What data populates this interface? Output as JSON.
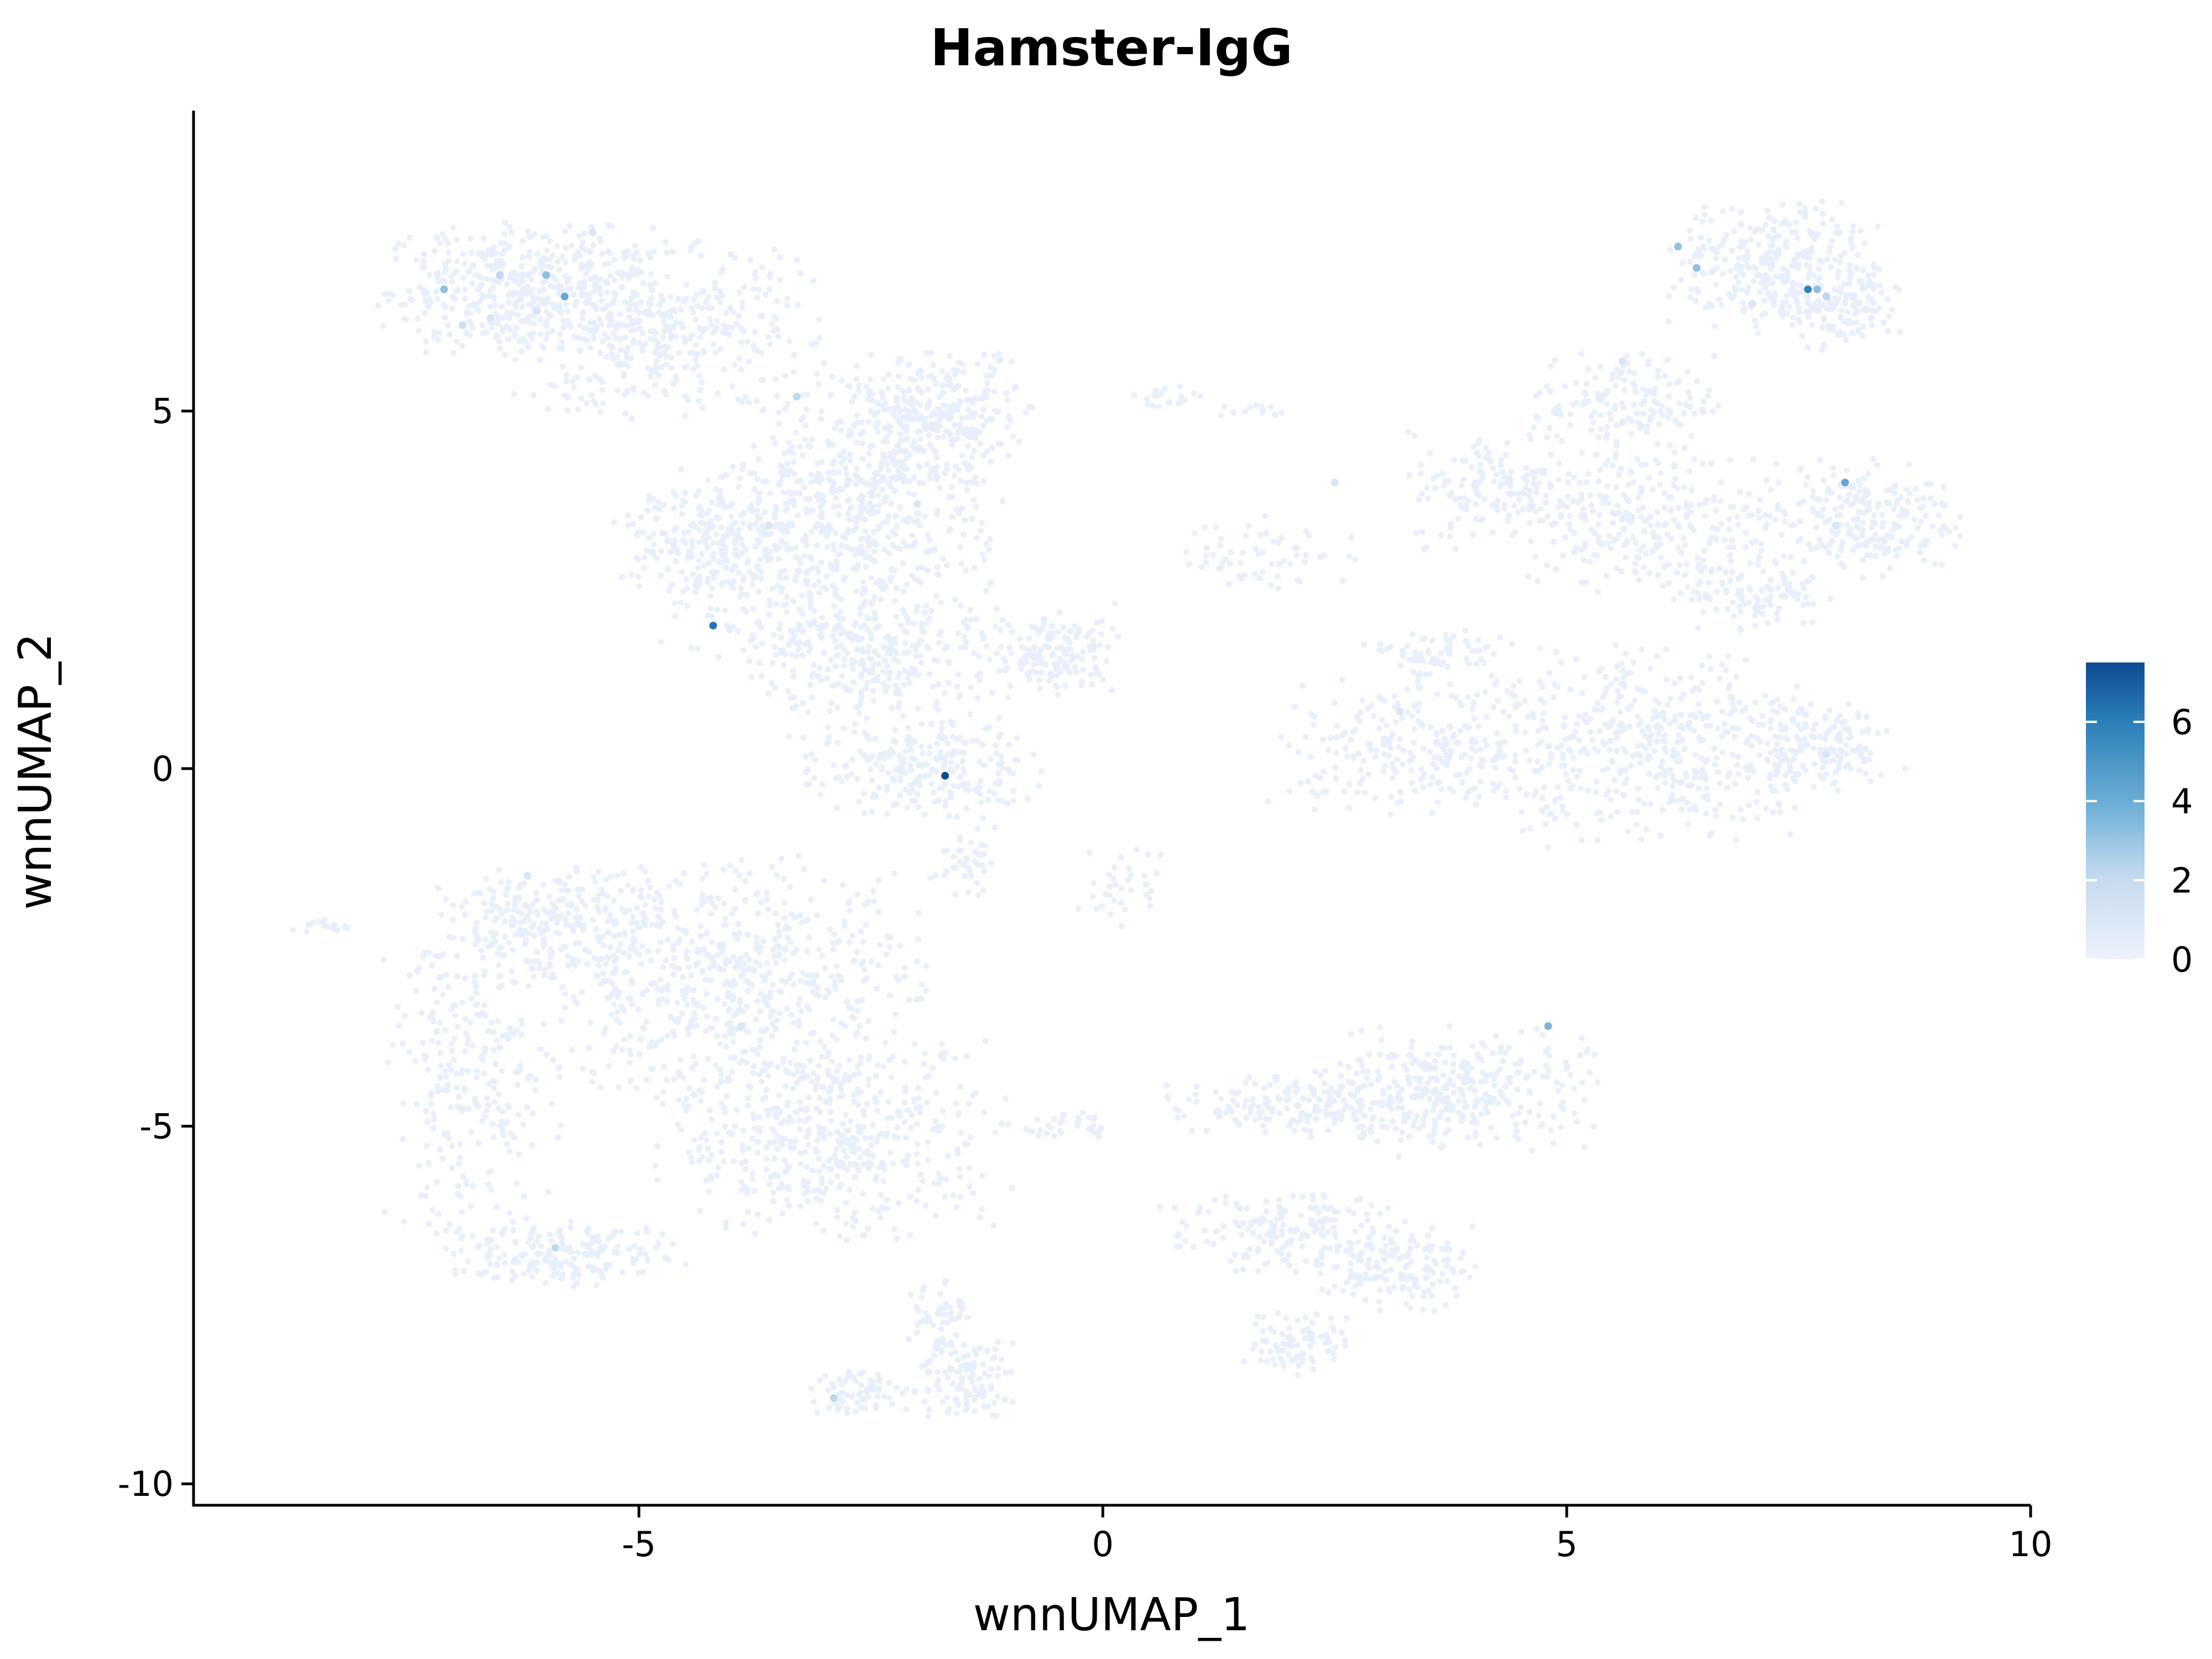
{
  "chart_data": {
    "type": "scatter",
    "title": "Hamster-IgG",
    "xlabel": "wnnUMAP_1",
    "ylabel": "wnnUMAP_2",
    "xlim": [
      -9.8,
      10
    ],
    "ylim": [
      -10.3,
      9.2
    ],
    "x_ticks": [
      -5,
      0,
      5,
      10
    ],
    "x_tick_labels": [
      "-5",
      "0",
      "5",
      "10"
    ],
    "y_ticks": [
      -10,
      -5,
      0,
      5
    ],
    "y_tick_labels": [
      "-10",
      "-5",
      "0",
      "5"
    ],
    "background_point_value": 0,
    "clusters": [
      {
        "name": "c1",
        "cx": -6.3,
        "cy": 6.7,
        "rx": 1.3,
        "ry": 0.8,
        "n": 420
      },
      {
        "name": "c2",
        "cx": -4.8,
        "cy": 6.1,
        "rx": 1.5,
        "ry": 1.1,
        "n": 420
      },
      {
        "name": "c3",
        "cx": -2.4,
        "cy": 4.4,
        "rx": 1.1,
        "ry": 1.2,
        "n": 300
      },
      {
        "name": "c4",
        "cx": -1.7,
        "cy": 4.9,
        "rx": 0.8,
        "ry": 0.8,
        "n": 220
      },
      {
        "name": "c5",
        "cx": -3.0,
        "cy": 3.0,
        "rx": 1.5,
        "ry": 1.3,
        "n": 480
      },
      {
        "name": "c6",
        "cx": -4.4,
        "cy": 3.2,
        "rx": 0.8,
        "ry": 0.7,
        "n": 180
      },
      {
        "name": "c7",
        "cx": -2.4,
        "cy": 1.5,
        "rx": 1.2,
        "ry": 0.8,
        "n": 280
      },
      {
        "name": "c8",
        "cx": -0.5,
        "cy": 1.6,
        "rx": 0.6,
        "ry": 0.5,
        "n": 140
      },
      {
        "name": "c9",
        "cx": -2.0,
        "cy": 0.0,
        "rx": 1.2,
        "ry": 0.6,
        "n": 240
      },
      {
        "name": "c10",
        "cx": -1.5,
        "cy": -1.3,
        "rx": 0.3,
        "ry": 0.4,
        "n": 40
      },
      {
        "name": "c11",
        "cx": 0.7,
        "cy": 5.2,
        "rx": 0.3,
        "ry": 0.15,
        "n": 20
      },
      {
        "name": "c12",
        "cx": 1.6,
        "cy": 5.0,
        "rx": 0.3,
        "ry": 0.1,
        "n": 12
      },
      {
        "name": "c13",
        "cx": 1.8,
        "cy": 3.0,
        "rx": 0.9,
        "ry": 0.5,
        "n": 60
      },
      {
        "name": "c14",
        "cx": 0.2,
        "cy": -1.6,
        "rx": 0.4,
        "ry": 0.5,
        "n": 35
      },
      {
        "name": "c15",
        "cx": 7.3,
        "cy": 7.0,
        "rx": 1.0,
        "ry": 0.8,
        "n": 320
      },
      {
        "name": "c16",
        "cx": 8.0,
        "cy": 6.4,
        "rx": 0.5,
        "ry": 0.5,
        "n": 100
      },
      {
        "name": "c17",
        "cx": 5.6,
        "cy": 5.1,
        "rx": 0.9,
        "ry": 0.6,
        "n": 160
      },
      {
        "name": "c18",
        "cx": 4.3,
        "cy": 3.9,
        "rx": 0.9,
        "ry": 0.7,
        "n": 160
      },
      {
        "name": "c19",
        "cx": 5.8,
        "cy": 3.5,
        "rx": 1.1,
        "ry": 0.9,
        "n": 240
      },
      {
        "name": "c20",
        "cx": 8.1,
        "cy": 3.5,
        "rx": 1.0,
        "ry": 0.7,
        "n": 240
      },
      {
        "name": "c21",
        "cx": 7.0,
        "cy": 2.5,
        "rx": 0.7,
        "ry": 0.5,
        "n": 120
      },
      {
        "name": "c22",
        "cx": 6.0,
        "cy": 0.3,
        "rx": 1.6,
        "ry": 1.2,
        "n": 480
      },
      {
        "name": "c23",
        "cx": 3.4,
        "cy": 0.3,
        "rx": 1.4,
        "ry": 0.8,
        "n": 260
      },
      {
        "name": "c24",
        "cx": 3.6,
        "cy": 1.6,
        "rx": 0.7,
        "ry": 0.3,
        "n": 70
      },
      {
        "name": "c25",
        "cx": 7.8,
        "cy": 0.3,
        "rx": 0.6,
        "ry": 0.6,
        "n": 140
      },
      {
        "name": "c26",
        "cx": -6.0,
        "cy": -2.2,
        "rx": 1.0,
        "ry": 0.7,
        "n": 260
      },
      {
        "name": "c27",
        "cx": -4.0,
        "cy": -3.0,
        "rx": 1.8,
        "ry": 1.5,
        "n": 650
      },
      {
        "name": "c28",
        "cx": -2.9,
        "cy": -5.2,
        "rx": 1.6,
        "ry": 1.2,
        "n": 480
      },
      {
        "name": "c29",
        "cx": -6.8,
        "cy": -4.4,
        "rx": 0.8,
        "ry": 1.9,
        "n": 260
      },
      {
        "name": "c30",
        "cx": -5.8,
        "cy": -6.8,
        "rx": 1.1,
        "ry": 0.4,
        "n": 180
      },
      {
        "name": "c31",
        "cx": -8.4,
        "cy": -2.2,
        "rx": 0.4,
        "ry": 0.1,
        "n": 15
      },
      {
        "name": "c32",
        "cx": -2.6,
        "cy": -8.7,
        "rx": 0.5,
        "ry": 0.3,
        "n": 70
      },
      {
        "name": "c33",
        "cx": -1.5,
        "cy": -8.5,
        "rx": 0.5,
        "ry": 0.5,
        "n": 110
      },
      {
        "name": "c34",
        "cx": -1.8,
        "cy": -7.6,
        "rx": 0.3,
        "ry": 0.5,
        "n": 50
      },
      {
        "name": "c35",
        "cx": 3.8,
        "cy": -4.5,
        "rx": 1.3,
        "ry": 0.8,
        "n": 300
      },
      {
        "name": "c36",
        "cx": 2.2,
        "cy": -4.7,
        "rx": 1.5,
        "ry": 0.4,
        "n": 190
      },
      {
        "name": "c37",
        "cx": 2.0,
        "cy": -6.5,
        "rx": 1.2,
        "ry": 0.5,
        "n": 190
      },
      {
        "name": "c38",
        "cx": 3.2,
        "cy": -7.0,
        "rx": 0.7,
        "ry": 0.5,
        "n": 130
      },
      {
        "name": "c39",
        "cx": 2.1,
        "cy": -8.0,
        "rx": 0.5,
        "ry": 0.4,
        "n": 90
      },
      {
        "name": "c40",
        "cx": -0.4,
        "cy": -5.0,
        "rx": 0.4,
        "ry": 0.2,
        "n": 30
      }
    ],
    "highlighted_points": [
      {
        "x": -7.1,
        "y": 6.7,
        "value": 3
      },
      {
        "x": -6.5,
        "y": 6.9,
        "value": 2
      },
      {
        "x": -6.0,
        "y": 6.9,
        "value": 3
      },
      {
        "x": -5.8,
        "y": 6.6,
        "value": 4
      },
      {
        "x": -6.9,
        "y": 6.2,
        "value": 1.5
      },
      {
        "x": -6.1,
        "y": 6.4,
        "value": 1
      },
      {
        "x": -5.5,
        "y": 7.5,
        "value": 1
      },
      {
        "x": -6.6,
        "y": 6.3,
        "value": 1
      },
      {
        "x": -3.3,
        "y": 5.2,
        "value": 2
      },
      {
        "x": -4.2,
        "y": 2.0,
        "value": 6
      },
      {
        "x": -1.7,
        "y": -0.1,
        "value": 7.5
      },
      {
        "x": -2.0,
        "y": 3.7,
        "value": 1
      },
      {
        "x": -3.6,
        "y": 3.4,
        "value": 1
      },
      {
        "x": 6.2,
        "y": 7.3,
        "value": 3
      },
      {
        "x": 6.4,
        "y": 7.0,
        "value": 3
      },
      {
        "x": 7.6,
        "y": 6.7,
        "value": 5.5
      },
      {
        "x": 7.7,
        "y": 6.7,
        "value": 3
      },
      {
        "x": 7.8,
        "y": 6.6,
        "value": 2
      },
      {
        "x": 7.0,
        "y": 6.5,
        "value": 1
      },
      {
        "x": 8.0,
        "y": 4.0,
        "value": 4
      },
      {
        "x": 7.9,
        "y": 3.4,
        "value": 1
      },
      {
        "x": 5.6,
        "y": 5.7,
        "value": 1
      },
      {
        "x": 2.5,
        "y": 4.0,
        "value": 1
      },
      {
        "x": 4.8,
        "y": -3.6,
        "value": 3.5
      },
      {
        "x": -5.9,
        "y": -6.7,
        "value": 2
      },
      {
        "x": -2.9,
        "y": -8.8,
        "value": 2
      },
      {
        "x": -6.2,
        "y": -1.5,
        "value": 1
      },
      {
        "x": -3.9,
        "y": -3.6,
        "value": 1
      },
      {
        "x": 3.2,
        "y": 0.8,
        "value": 1
      },
      {
        "x": 7.8,
        "y": 0.2,
        "value": 1
      }
    ],
    "colorbar": {
      "min": 0,
      "max": 7.5,
      "ticks": [
        0,
        2,
        4,
        6
      ],
      "tick_labels": [
        "0",
        "2",
        "4",
        "6"
      ],
      "low_color": "#eef2fc",
      "high_color": "#0c4a92"
    },
    "grid": false,
    "legend_position": "right"
  },
  "colors": {
    "background": "#ffffff",
    "axis": "#000000",
    "point_base": "#e8eefb",
    "colorbar_stops": [
      "#eef2fc",
      "#c6dbef",
      "#6baed6",
      "#2c7fb8",
      "#0c4a92"
    ]
  }
}
